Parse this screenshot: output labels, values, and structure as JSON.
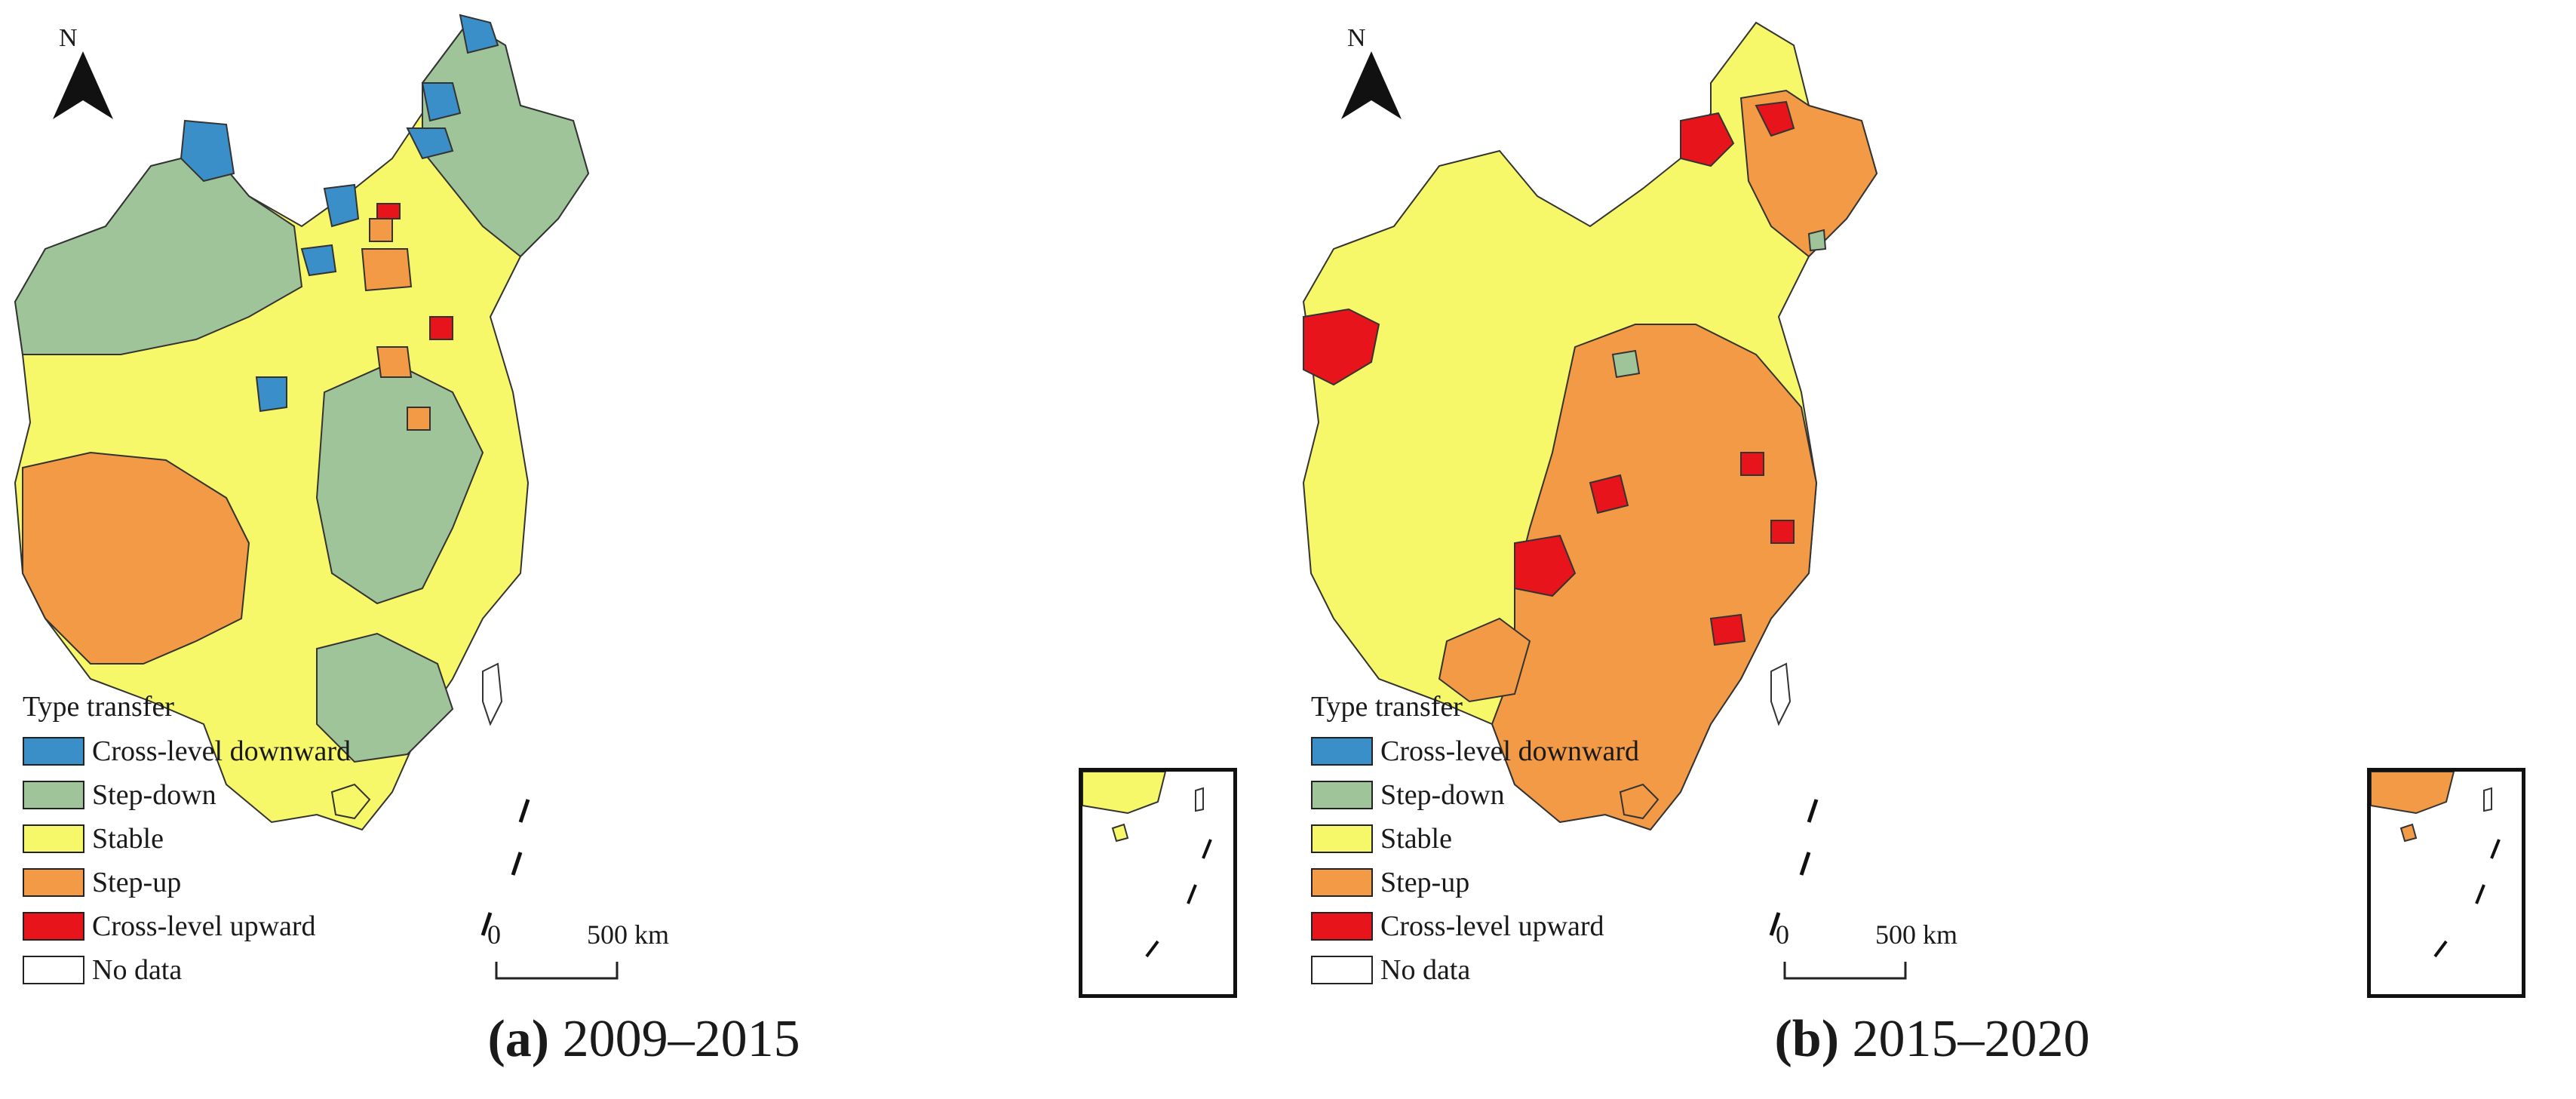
{
  "legend": {
    "title": "Type transfer",
    "items": [
      {
        "label": "Cross-level downward",
        "color": "#3a8fc9"
      },
      {
        "label": "Step-down",
        "color": "#9fc49a"
      },
      {
        "label": "Stable",
        "color": "#f7f76a"
      },
      {
        "label": "Step-up",
        "color": "#f29a45"
      },
      {
        "label": "Cross-level upward",
        "color": "#e8141b"
      },
      {
        "label": "No data",
        "color": "#ffffff"
      }
    ]
  },
  "north_label": "N",
  "scale": {
    "start": "0",
    "end": "500 km"
  },
  "panels": [
    {
      "letter": "(a)",
      "period": "2009–2015"
    },
    {
      "letter": "(b)",
      "period": "2015–2020"
    }
  ]
}
